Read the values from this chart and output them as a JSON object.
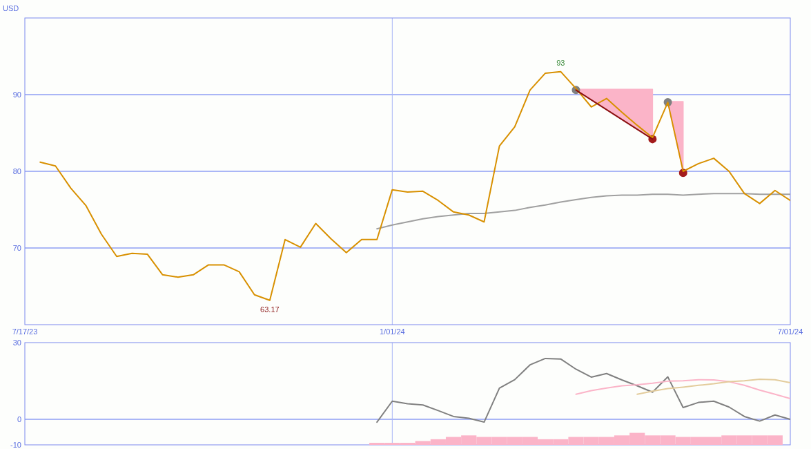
{
  "chart_data": [
    {
      "type": "line",
      "ylabel": "USD",
      "xlim": [
        "2023-07-17",
        "2024-07-01"
      ],
      "xticks": [
        {
          "value": "2023-07-17",
          "label": "7/17/23"
        },
        {
          "value": "2024-01-01",
          "label": "1/01/24"
        },
        {
          "value": "2024-07-01",
          "label": "7/01/24"
        }
      ],
      "ylim": [
        60,
        100
      ],
      "yticks": [
        70,
        80,
        90
      ],
      "grid": "y",
      "ref_lines": [
        {
          "axis": "x",
          "value": "2024-01-01",
          "color": "#aab6f6"
        }
      ],
      "annotations": [
        {
          "text": "93",
          "x": "2024-03-18",
          "y": 93
        },
        {
          "text": "63.17",
          "x": "2023-11-06",
          "y": 63.17
        }
      ],
      "x": [
        "2023-07-24",
        "2023-07-31",
        "2023-08-07",
        "2023-08-14",
        "2023-08-21",
        "2023-08-28",
        "2023-09-04",
        "2023-09-11",
        "2023-09-18",
        "2023-09-25",
        "2023-10-02",
        "2023-10-09",
        "2023-10-16",
        "2023-10-23",
        "2023-10-30",
        "2023-11-06",
        "2023-11-13",
        "2023-11-20",
        "2023-11-27",
        "2023-12-04",
        "2023-12-11",
        "2023-12-18",
        "2023-12-25",
        "2024-01-01",
        "2024-01-08",
        "2024-01-15",
        "2024-01-22",
        "2024-01-29",
        "2024-02-05",
        "2024-02-12",
        "2024-02-19",
        "2024-02-26",
        "2024-03-04",
        "2024-03-11",
        "2024-03-18",
        "2024-03-25",
        "2024-04-01",
        "2024-04-08",
        "2024-04-15",
        "2024-04-22",
        "2024-04-29",
        "2024-05-06",
        "2024-05-13",
        "2024-05-20",
        "2024-05-27",
        "2024-06-03",
        "2024-06-10",
        "2024-06-17",
        "2024-06-24",
        "2024-07-01"
      ],
      "series": [
        {
          "type": "scatter",
          "color": "#808080",
          "marker": "circle",
          "x": [
            "2024-03-25",
            "2024-05-06"
          ],
          "values": [
            90.6,
            89.0
          ]
        },
        {
          "type": "scatter",
          "color": "#a31c1c",
          "marker": "circle",
          "x": [
            "2024-04-29",
            "2024-05-13"
          ],
          "values": [
            84.2,
            79.8
          ]
        },
        {
          "color": "#a0a0a0",
          "x": [
            "2023-12-25",
            "2024-01-01",
            "2024-01-08",
            "2024-01-15",
            "2024-01-22",
            "2024-01-29",
            "2024-02-05",
            "2024-02-12",
            "2024-02-19",
            "2024-02-26",
            "2024-03-04",
            "2024-03-11",
            "2024-03-18",
            "2024-03-25",
            "2024-04-01",
            "2024-04-08",
            "2024-04-15",
            "2024-04-22",
            "2024-04-29",
            "2024-05-06",
            "2024-05-13",
            "2024-05-20",
            "2024-05-27",
            "2024-06-03",
            "2024-06-10",
            "2024-06-17",
            "2024-06-24",
            "2024-07-01"
          ],
          "values": [
            72.5,
            73.0,
            73.4,
            73.8,
            74.1,
            74.3,
            74.5,
            74.5,
            74.7,
            74.9,
            75.3,
            75.6,
            76.0,
            76.3,
            76.6,
            76.8,
            76.9,
            76.9,
            77.0,
            77.0,
            76.9,
            77.0,
            77.1,
            77.1,
            77.1,
            77.0,
            77.0,
            77.0
          ]
        },
        {
          "color": "#d89000",
          "values": [
            81.2,
            80.7,
            77.8,
            75.5,
            71.8,
            68.9,
            69.3,
            69.2,
            66.5,
            66.2,
            66.5,
            67.8,
            67.8,
            66.9,
            63.9,
            63.17,
            71.1,
            70.1,
            73.2,
            71.2,
            69.4,
            71.1,
            71.1,
            77.6,
            77.3,
            77.4,
            76.2,
            74.7,
            74.3,
            73.4,
            83.3,
            85.8,
            90.6,
            92.8,
            93,
            90.8,
            88.4,
            89.5,
            87.7,
            86.0,
            84.4,
            89.0,
            80.0,
            81.0,
            81.7,
            80.0,
            77.1,
            75.8,
            77.5,
            76.2
          ],
          "lower": [
            null,
            null,
            null,
            null,
            null,
            null,
            null,
            null,
            null,
            null,
            null,
            null,
            null,
            null,
            null,
            null,
            null,
            null,
            null,
            null,
            null,
            null,
            null,
            null,
            null,
            null,
            null,
            null,
            null,
            null,
            null,
            null,
            null,
            null,
            null,
            null,
            null,
            null,
            null,
            null,
            null,
            89.0,
            80.0,
            null,
            null,
            null,
            null,
            null,
            null,
            null
          ],
          "upper": [
            null,
            null,
            null,
            null,
            null,
            null,
            null,
            null,
            null,
            null,
            null,
            null,
            null,
            null,
            null,
            null,
            null,
            null,
            null,
            null,
            null,
            null,
            null,
            null,
            null,
            null,
            null,
            null,
            null,
            null,
            null,
            null,
            null,
            null,
            null,
            null,
            null,
            null,
            null,
            null,
            null,
            89.1,
            89.1,
            null,
            null,
            null,
            null,
            null,
            null,
            null
          ]
        },
        {
          "color": "#8b1010",
          "x": [
            "2024-03-25",
            "2024-04-29"
          ],
          "values": [
            90.6,
            84.2
          ],
          "lower": [
            90.6,
            84.2
          ],
          "upper": [
            90.7,
            90.7
          ]
        }
      ]
    },
    {
      "type": "line",
      "xlim": [
        "2023-07-17",
        "2024-07-01"
      ],
      "ylim": [
        -10,
        30
      ],
      "yticks": [
        30,
        0,
        -10
      ],
      "tick_labels": "y",
      "ref_lines": [
        {
          "axis": "x",
          "value": "2024-01-01",
          "color": "#aab6f6"
        },
        {
          "axis": "y",
          "value": 0,
          "color": "#aab6f6"
        }
      ],
      "series": [
        {
          "type": "bar",
          "color": "#fbb4c8",
          "x": [
            "2023-12-25",
            "2024-01-01",
            "2024-01-08",
            "2024-01-15",
            "2024-01-22",
            "2024-01-29",
            "2024-02-05",
            "2024-02-12",
            "2024-02-19",
            "2024-02-26",
            "2024-03-04",
            "2024-03-11",
            "2024-03-18",
            "2024-03-25",
            "2024-04-01",
            "2024-04-08",
            "2024-04-15",
            "2024-04-22",
            "2024-04-29",
            "2024-05-06",
            "2024-05-13",
            "2024-05-20",
            "2024-05-27",
            "2024-06-03",
            "2024-06-10",
            "2024-06-17",
            "2024-06-24"
          ],
          "base": [
            -10,
            -10,
            -10,
            -10,
            -10,
            -10,
            -10,
            -10,
            -10,
            -10,
            -10,
            -10,
            -10,
            -10,
            -10,
            -10,
            -10,
            -10,
            -10,
            -10,
            -10,
            -10,
            -10,
            -10,
            -10,
            -10,
            -10
          ],
          "values": [
            0.8,
            0.8,
            0.8,
            1.5,
            2.2,
            3.1,
            3.7,
            3.1,
            3.1,
            3.1,
            3.1,
            2.2,
            2.2,
            3.1,
            3.1,
            3.1,
            3.7,
            4.7,
            3.7,
            3.7,
            3.1,
            3.1,
            3.1,
            3.7,
            3.7,
            3.7,
            3.7
          ]
        },
        {
          "color": "#808080",
          "x": [
            "2023-12-25",
            "2024-01-01",
            "2024-01-08",
            "2024-01-15",
            "2024-01-22",
            "2024-01-29",
            "2024-02-05",
            "2024-02-12",
            "2024-02-19",
            "2024-02-26",
            "2024-03-04",
            "2024-03-11",
            "2024-03-18",
            "2024-03-25",
            "2024-04-01",
            "2024-04-08",
            "2024-04-15",
            "2024-04-22",
            "2024-04-29",
            "2024-05-06",
            "2024-05-13",
            "2024-05-20",
            "2024-05-27",
            "2024-06-03",
            "2024-06-10",
            "2024-06-17",
            "2024-06-24",
            "2024-07-01"
          ],
          "values": [
            -1.1,
            7.1,
            6.1,
            5.6,
            3.4,
            1.1,
            0.4,
            -1.1,
            12.2,
            15.5,
            21.3,
            23.8,
            23.6,
            19.6,
            16.5,
            17.9,
            15.4,
            13.1,
            10.6,
            16.6,
            4.6,
            6.6,
            7.1,
            4.8,
            1.1,
            -0.7,
            1.7,
            0.0
          ]
        },
        {
          "color": "#fbb4c8",
          "x": [
            "2024-03-25",
            "2024-04-01",
            "2024-04-08",
            "2024-04-15",
            "2024-04-22",
            "2024-04-29",
            "2024-05-06",
            "2024-05-13",
            "2024-05-20",
            "2024-05-27",
            "2024-06-03",
            "2024-06-10",
            "2024-06-17",
            "2024-06-24",
            "2024-07-01"
          ],
          "values": [
            9.8,
            11.2,
            12.2,
            13.1,
            13.5,
            14.1,
            14.9,
            15.1,
            15.5,
            15.4,
            14.7,
            13.3,
            11.4,
            9.8,
            8.1
          ]
        },
        {
          "color": "#e3cc9c",
          "x": [
            "2024-04-22",
            "2024-04-29",
            "2024-05-06",
            "2024-05-13",
            "2024-05-20",
            "2024-05-27",
            "2024-06-03",
            "2024-06-10",
            "2024-06-17",
            "2024-06-24",
            "2024-07-01"
          ],
          "values": [
            9.8,
            11.0,
            12.0,
            12.6,
            13.3,
            13.9,
            14.7,
            15.1,
            15.7,
            15.5,
            14.3
          ]
        }
      ]
    }
  ]
}
